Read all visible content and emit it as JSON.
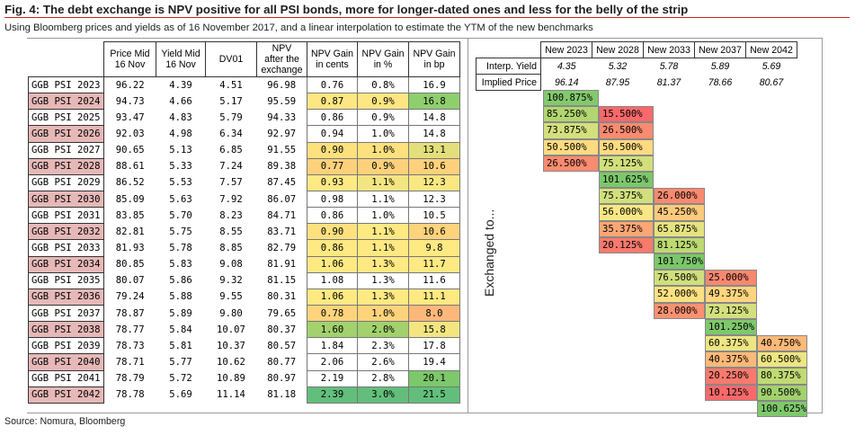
{
  "title": "Fig. 4: The debt exchange is NPV positive for all PSI bonds, more for longer-dated ones and less for the belly of the strip",
  "subtitle": "Using Bloomberg prices and yields as of 16 November 2017, and a linear interpolation to estimate the YTM of the new benchmarks",
  "source": "Source: Nomura, Bloomberg",
  "exchanged_label": "Exchanged to...",
  "left_headers": {
    "price": [
      "Price Mid",
      "16 Nov"
    ],
    "yield": [
      "Yield Mid",
      "16 Nov"
    ],
    "dv01": "DV01",
    "npv": [
      "NPV",
      "after the",
      "exchange"
    ],
    "gain_cents": [
      "NPV Gain",
      "in cents"
    ],
    "gain_pct": [
      "NPV Gain",
      "in %"
    ],
    "gain_bp": [
      "NPV Gain",
      "in bp"
    ]
  },
  "rows": [
    {
      "name": "GGB PSI 2023",
      "price": "96.22",
      "yield": "4.39",
      "dv01": "4.51",
      "npv": "96.98",
      "cents": "0.76",
      "pct": "0.8%",
      "bp": "16.9",
      "hl": false,
      "cc": "#ffffff",
      "pc": "#ffffff",
      "bc": "#ffffff"
    },
    {
      "name": "GGB PSI 2024",
      "price": "94.73",
      "yield": "4.66",
      "dv01": "5.17",
      "npv": "95.59",
      "cents": "0.87",
      "pct": "0.9%",
      "bp": "16.8",
      "hl": true,
      "cc": "#fee683",
      "pc": "#fee683",
      "bc": "#8fce6d"
    },
    {
      "name": "GGB PSI 2025",
      "price": "93.47",
      "yield": "4.83",
      "dv01": "5.79",
      "npv": "94.33",
      "cents": "0.86",
      "pct": "0.9%",
      "bp": "14.8",
      "hl": false,
      "cc": "#ffffff",
      "pc": "#ffffff",
      "bc": "#ffffff"
    },
    {
      "name": "GGB PSI 2026",
      "price": "92.03",
      "yield": "4.98",
      "dv01": "6.34",
      "npv": "92.97",
      "cents": "0.94",
      "pct": "1.0%",
      "bp": "14.8",
      "hl": true,
      "cc": "#ffffff",
      "pc": "#ffffff",
      "bc": "#ffffff"
    },
    {
      "name": "GGB PSI 2027",
      "price": "90.65",
      "yield": "5.13",
      "dv01": "6.85",
      "npv": "91.55",
      "cents": "0.90",
      "pct": "1.0%",
      "bp": "13.1",
      "hl": false,
      "cc": "#fee17e",
      "pc": "#fee17e",
      "bc": "#e3df7c"
    },
    {
      "name": "GGB PSI 2028",
      "price": "88.61",
      "yield": "5.33",
      "dv01": "7.24",
      "npv": "89.38",
      "cents": "0.77",
      "pct": "0.9%",
      "bp": "10.6",
      "hl": true,
      "cc": "#fdd17b",
      "pc": "#fdd17b",
      "bc": "#fdd17b"
    },
    {
      "name": "GGB PSI 2029",
      "price": "86.52",
      "yield": "5.53",
      "dv01": "7.57",
      "npv": "87.45",
      "cents": "0.93",
      "pct": "1.1%",
      "bp": "12.3",
      "hl": false,
      "cc": "#fee983",
      "pc": "#f3e582",
      "bc": "#f9e782"
    },
    {
      "name": "GGB PSI 2030",
      "price": "85.09",
      "yield": "5.63",
      "dv01": "7.92",
      "npv": "86.07",
      "cents": "0.98",
      "pct": "1.1%",
      "bp": "12.3",
      "hl": true,
      "cc": "#ffffff",
      "pc": "#ffffff",
      "bc": "#ffffff"
    },
    {
      "name": "GGB PSI 2031",
      "price": "83.85",
      "yield": "5.70",
      "dv01": "8.23",
      "npv": "84.71",
      "cents": "0.86",
      "pct": "1.0%",
      "bp": "10.5",
      "hl": false,
      "cc": "#ffffff",
      "pc": "#ffffff",
      "bc": "#ffffff"
    },
    {
      "name": "GGB PSI 2032",
      "price": "82.81",
      "yield": "5.75",
      "dv01": "8.55",
      "npv": "83.71",
      "cents": "0.90",
      "pct": "1.1%",
      "bp": "10.6",
      "hl": true,
      "cc": "#fee17e",
      "pc": "#fee983",
      "bc": "#fdd37c"
    },
    {
      "name": "GGB PSI 2033",
      "price": "81.93",
      "yield": "5.78",
      "dv01": "8.85",
      "npv": "82.79",
      "cents": "0.86",
      "pct": "1.1%",
      "bp": "9.8",
      "hl": false,
      "cc": "#fee983",
      "pc": "#fee983",
      "bc": "#fee983"
    },
    {
      "name": "GGB PSI 2034",
      "price": "80.85",
      "yield": "5.83",
      "dv01": "9.08",
      "npv": "81.91",
      "cents": "1.06",
      "pct": "1.3%",
      "bp": "11.7",
      "hl": true,
      "cc": "#fee983",
      "pc": "#fee983",
      "bc": "#fee983"
    },
    {
      "name": "GGB PSI 2035",
      "price": "80.07",
      "yield": "5.86",
      "dv01": "9.32",
      "npv": "81.15",
      "cents": "1.08",
      "pct": "1.3%",
      "bp": "11.6",
      "hl": false,
      "cc": "#ffffff",
      "pc": "#ffffff",
      "bc": "#ffffff"
    },
    {
      "name": "GGB PSI 2036",
      "price": "79.24",
      "yield": "5.88",
      "dv01": "9.55",
      "npv": "80.31",
      "cents": "1.06",
      "pct": "1.3%",
      "bp": "11.1",
      "hl": true,
      "cc": "#fee983",
      "pc": "#fee983",
      "bc": "#fee983"
    },
    {
      "name": "GGB PSI 2037",
      "price": "78.87",
      "yield": "5.89",
      "dv01": "9.80",
      "npv": "79.65",
      "cents": "0.78",
      "pct": "1.0%",
      "bp": "8.0",
      "hl": false,
      "cc": "#fdd47c",
      "pc": "#fdd47c",
      "bc": "#fcb87a"
    },
    {
      "name": "GGB PSI 2038",
      "price": "78.77",
      "yield": "5.84",
      "dv01": "10.07",
      "npv": "80.37",
      "cents": "1.60",
      "pct": "2.0%",
      "bp": "15.8",
      "hl": true,
      "cc": "#a2d16e",
      "pc": "#a2d16e",
      "bc": "#f3e582"
    },
    {
      "name": "GGB PSI 2039",
      "price": "78.73",
      "yield": "5.81",
      "dv01": "10.37",
      "npv": "80.57",
      "cents": "1.84",
      "pct": "2.3%",
      "bp": "17.8",
      "hl": false,
      "cc": "#ffffff",
      "pc": "#ffffff",
      "bc": "#ffffff"
    },
    {
      "name": "GGB PSI 2040",
      "price": "78.71",
      "yield": "5.77",
      "dv01": "10.62",
      "npv": "80.77",
      "cents": "2.06",
      "pct": "2.6%",
      "bp": "19.4",
      "hl": true,
      "cc": "#ffffff",
      "pc": "#ffffff",
      "bc": "#ffffff"
    },
    {
      "name": "GGB PSI 2041",
      "price": "78.79",
      "yield": "5.72",
      "dv01": "10.89",
      "npv": "80.97",
      "cents": "2.19",
      "pct": "2.8%",
      "bp": "20.1",
      "hl": false,
      "cc": "#ffffff",
      "pc": "#ffffff",
      "bc": "#7cc86b"
    },
    {
      "name": "GGB PSI 2042",
      "price": "78.78",
      "yield": "5.69",
      "dv01": "11.14",
      "npv": "81.18",
      "cents": "2.39",
      "pct": "3.0%",
      "bp": "21.5",
      "hl": true,
      "cc": "#63be7b",
      "pc": "#63be7b",
      "bc": "#63be7b"
    }
  ],
  "benchmarks": {
    "headers": [
      "New 2023",
      "New 2028",
      "New 2033",
      "New 2037",
      "New 2042"
    ],
    "interp_label": "Interp. Yield",
    "interp": [
      "4.35",
      "5.32",
      "5.78",
      "5.89",
      "5.69"
    ],
    "implied_label": "Implied Price",
    "implied": [
      "96.14",
      "87.95",
      "81.37",
      "78.66",
      "80.67"
    ]
  },
  "exchange_matrix": [
    {
      "row": 0,
      "col": 0,
      "v": "100.875%",
      "c": "#83c96d"
    },
    {
      "row": 1,
      "col": 0,
      "v": "85.250%",
      "c": "#b1d670"
    },
    {
      "row": 1,
      "col": 1,
      "v": "15.500%",
      "c": "#f8696b"
    },
    {
      "row": 2,
      "col": 0,
      "v": "73.875%",
      "c": "#d3e07c"
    },
    {
      "row": 2,
      "col": 1,
      "v": "26.500%",
      "c": "#f98b70"
    },
    {
      "row": 3,
      "col": 0,
      "v": "50.500%",
      "c": "#fedb81"
    },
    {
      "row": 3,
      "col": 1,
      "v": "50.500%",
      "c": "#fedb81"
    },
    {
      "row": 4,
      "col": 0,
      "v": "26.500%",
      "c": "#f98b70"
    },
    {
      "row": 4,
      "col": 1,
      "v": "75.125%",
      "c": "#d1e07d"
    },
    {
      "row": 5,
      "col": 1,
      "v": "101.625%",
      "c": "#7cc76b"
    },
    {
      "row": 6,
      "col": 1,
      "v": "75.375%",
      "c": "#d1e07d"
    },
    {
      "row": 6,
      "col": 2,
      "v": "26.000%",
      "c": "#f98a70"
    },
    {
      "row": 7,
      "col": 1,
      "v": "56.000%",
      "c": "#f8e783"
    },
    {
      "row": 7,
      "col": 2,
      "v": "45.250%",
      "c": "#fdc97c"
    },
    {
      "row": 8,
      "col": 1,
      "v": "35.375%",
      "c": "#fba674"
    },
    {
      "row": 8,
      "col": 2,
      "v": "65.875%",
      "c": "#e5e37f"
    },
    {
      "row": 9,
      "col": 1,
      "v": "20.125%",
      "c": "#f87a6d"
    },
    {
      "row": 9,
      "col": 2,
      "v": "81.125%",
      "c": "#bdd972"
    },
    {
      "row": 10,
      "col": 2,
      "v": "101.750%",
      "c": "#7bc76a"
    },
    {
      "row": 11,
      "col": 2,
      "v": "76.500%",
      "c": "#cfdf7c"
    },
    {
      "row": 11,
      "col": 3,
      "v": "25.000%",
      "c": "#f9876f"
    },
    {
      "row": 12,
      "col": 2,
      "v": "52.000%",
      "c": "#fee182"
    },
    {
      "row": 12,
      "col": 3,
      "v": "49.375%",
      "c": "#fed47e"
    },
    {
      "row": 13,
      "col": 2,
      "v": "28.000%",
      "c": "#fa9171"
    },
    {
      "row": 13,
      "col": 3,
      "v": "73.125%",
      "c": "#d4e07d"
    },
    {
      "row": 14,
      "col": 3,
      "v": "101.250%",
      "c": "#7ec86b"
    },
    {
      "row": 15,
      "col": 3,
      "v": "60.375%",
      "c": "#ede582"
    },
    {
      "row": 15,
      "col": 4,
      "v": "40.750%",
      "c": "#fcb978"
    },
    {
      "row": 16,
      "col": 3,
      "v": "40.375%",
      "c": "#fcb978"
    },
    {
      "row": 16,
      "col": 4,
      "v": "60.500%",
      "c": "#ede582"
    },
    {
      "row": 17,
      "col": 3,
      "v": "20.250%",
      "c": "#f87a6d"
    },
    {
      "row": 17,
      "col": 4,
      "v": "80.375%",
      "c": "#c0da73"
    },
    {
      "row": 18,
      "col": 3,
      "v": "10.125%",
      "c": "#f8696b"
    },
    {
      "row": 18,
      "col": 4,
      "v": "90.500%",
      "c": "#a2d16e"
    },
    {
      "row": 19,
      "col": 4,
      "v": "100.625%",
      "c": "#7fc86b"
    }
  ]
}
